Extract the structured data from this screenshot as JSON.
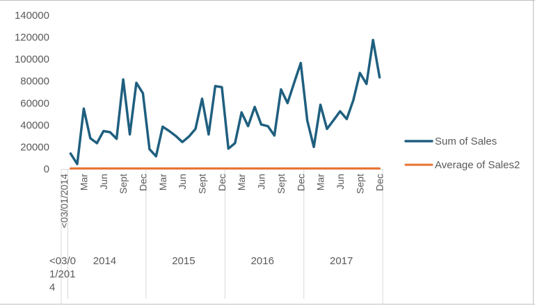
{
  "colors": {
    "series_sales": "#1f5f7f",
    "series_avg": "#e8712f",
    "gridline": "#d9d9d9",
    "axis_text": "#595959",
    "border": "#bfbfbf"
  },
  "chart_data": {
    "type": "line",
    "title": "",
    "xlabel": "",
    "ylabel": "",
    "ylim": [
      0,
      140000
    ],
    "yticks": [
      "0",
      "20000",
      "40000",
      "60000",
      "80000",
      "100000",
      "120000",
      "140000"
    ],
    "grid": false,
    "legend_position": "right",
    "first_category_label": "<03/01/2014",
    "years": [
      {
        "label": "<03/0\n1/201\n4",
        "lines": [
          "<03/0",
          "1/201",
          "4"
        ]
      },
      {
        "label": "2014",
        "months": [
          "Mar",
          "Jun",
          "Sept",
          "Dec"
        ]
      },
      {
        "label": "2015",
        "months": [
          "Mar",
          "Jun",
          "Sept",
          "Dec"
        ]
      },
      {
        "label": "2016",
        "months": [
          "Mar",
          "Jun",
          "Sept",
          "Dec"
        ]
      },
      {
        "label": "2017",
        "months": [
          "Mar",
          "Jun",
          "Sept",
          "Dec"
        ]
      }
    ],
    "x": [
      "<03/01/2014",
      "2014-01",
      "2014-02",
      "2014-03",
      "2014-04",
      "2014-05",
      "2014-06",
      "2014-07",
      "2014-08",
      "2014-09",
      "2014-10",
      "2014-11",
      "2014-12",
      "2015-01",
      "2015-02",
      "2015-03",
      "2015-04",
      "2015-05",
      "2015-06",
      "2015-07",
      "2015-08",
      "2015-09",
      "2015-10",
      "2015-11",
      "2015-12",
      "2016-01",
      "2016-02",
      "2016-03",
      "2016-04",
      "2016-05",
      "2016-06",
      "2016-07",
      "2016-08",
      "2016-09",
      "2016-10",
      "2016-11",
      "2016-12",
      "2017-01",
      "2017-02",
      "2017-03",
      "2017-04",
      "2017-05",
      "2017-06",
      "2017-07",
      "2017-08",
      "2017-09",
      "2017-10",
      "2017-11",
      "2017-12"
    ],
    "series": [
      {
        "name": "Sum of Sales",
        "values": [
          null,
          14000,
          4500,
          55000,
          28000,
          23500,
          34500,
          33500,
          27500,
          81500,
          31500,
          78500,
          69000,
          18000,
          11500,
          38500,
          34500,
          30000,
          24500,
          29500,
          36500,
          64000,
          31500,
          75500,
          74500,
          18500,
          23500,
          51500,
          39000,
          56500,
          40500,
          39000,
          30500,
          72500,
          60000,
          78500,
          96500,
          44000,
          20000,
          58500,
          36500,
          44500,
          52500,
          45500,
          62500,
          87500,
          77500,
          117500,
          83500
        ]
      },
      {
        "name": "Average of Sales2",
        "values": [
          null,
          500,
          500,
          500,
          500,
          500,
          500,
          500,
          500,
          500,
          500,
          500,
          500,
          500,
          500,
          500,
          500,
          500,
          500,
          500,
          500,
          500,
          500,
          500,
          500,
          500,
          500,
          500,
          500,
          500,
          500,
          500,
          500,
          500,
          500,
          500,
          500,
          500,
          500,
          500,
          500,
          500,
          500,
          500,
          500,
          500,
          500,
          500,
          500
        ]
      }
    ]
  }
}
